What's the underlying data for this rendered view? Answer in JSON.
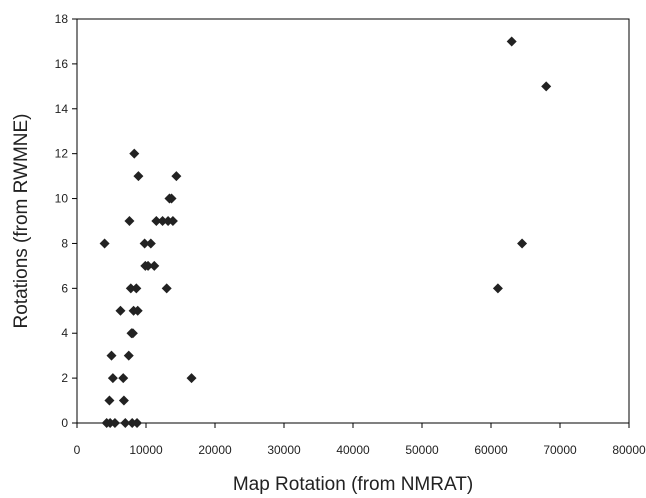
{
  "chart_data": {
    "type": "scatter",
    "title": "",
    "xlabel": "Map Rotation (from NMRAT)",
    "ylabel": "Rotations (from RWMNE)",
    "xlim": [
      0,
      80000
    ],
    "ylim": [
      0,
      18
    ],
    "xticks": [
      0,
      10000,
      20000,
      30000,
      40000,
      50000,
      60000,
      70000,
      80000
    ],
    "yticks": [
      0,
      2,
      4,
      6,
      8,
      10,
      12,
      14,
      16,
      18
    ],
    "xtick_labels": [
      "0",
      "10000",
      "20000",
      "30000",
      "40000",
      "50000",
      "60000",
      "70000",
      "80000"
    ],
    "ytick_labels": [
      "0",
      "2",
      "4",
      "6",
      "8",
      "10",
      "12",
      "14",
      "16",
      "18"
    ],
    "grid": false,
    "legend": "none",
    "marker": "diamond",
    "marker_color": "#222222",
    "series": [
      {
        "points": [
          [
            4000,
            8
          ],
          [
            4300,
            0
          ],
          [
            4700,
            1
          ],
          [
            4800,
            0
          ],
          [
            5000,
            3
          ],
          [
            5200,
            2
          ],
          [
            5500,
            0
          ],
          [
            6300,
            5
          ],
          [
            6700,
            2
          ],
          [
            6800,
            1
          ],
          [
            7000,
            0
          ],
          [
            7500,
            3
          ],
          [
            7600,
            9
          ],
          [
            7800,
            6
          ],
          [
            7900,
            4
          ],
          [
            8000,
            0
          ],
          [
            8100,
            4
          ],
          [
            8200,
            5
          ],
          [
            8300,
            12
          ],
          [
            8600,
            6
          ],
          [
            8700,
            0
          ],
          [
            8800,
            5
          ],
          [
            8900,
            11
          ],
          [
            9800,
            8
          ],
          [
            9900,
            7
          ],
          [
            10300,
            7
          ],
          [
            10700,
            8
          ],
          [
            11200,
            7
          ],
          [
            11500,
            9
          ],
          [
            12400,
            9
          ],
          [
            13000,
            6
          ],
          [
            13200,
            9
          ],
          [
            13400,
            10
          ],
          [
            13700,
            10
          ],
          [
            13900,
            9
          ],
          [
            14400,
            11
          ],
          [
            16600,
            2
          ],
          [
            61000,
            6
          ],
          [
            63000,
            17
          ],
          [
            64500,
            8
          ],
          [
            68000,
            15
          ]
        ]
      }
    ]
  }
}
